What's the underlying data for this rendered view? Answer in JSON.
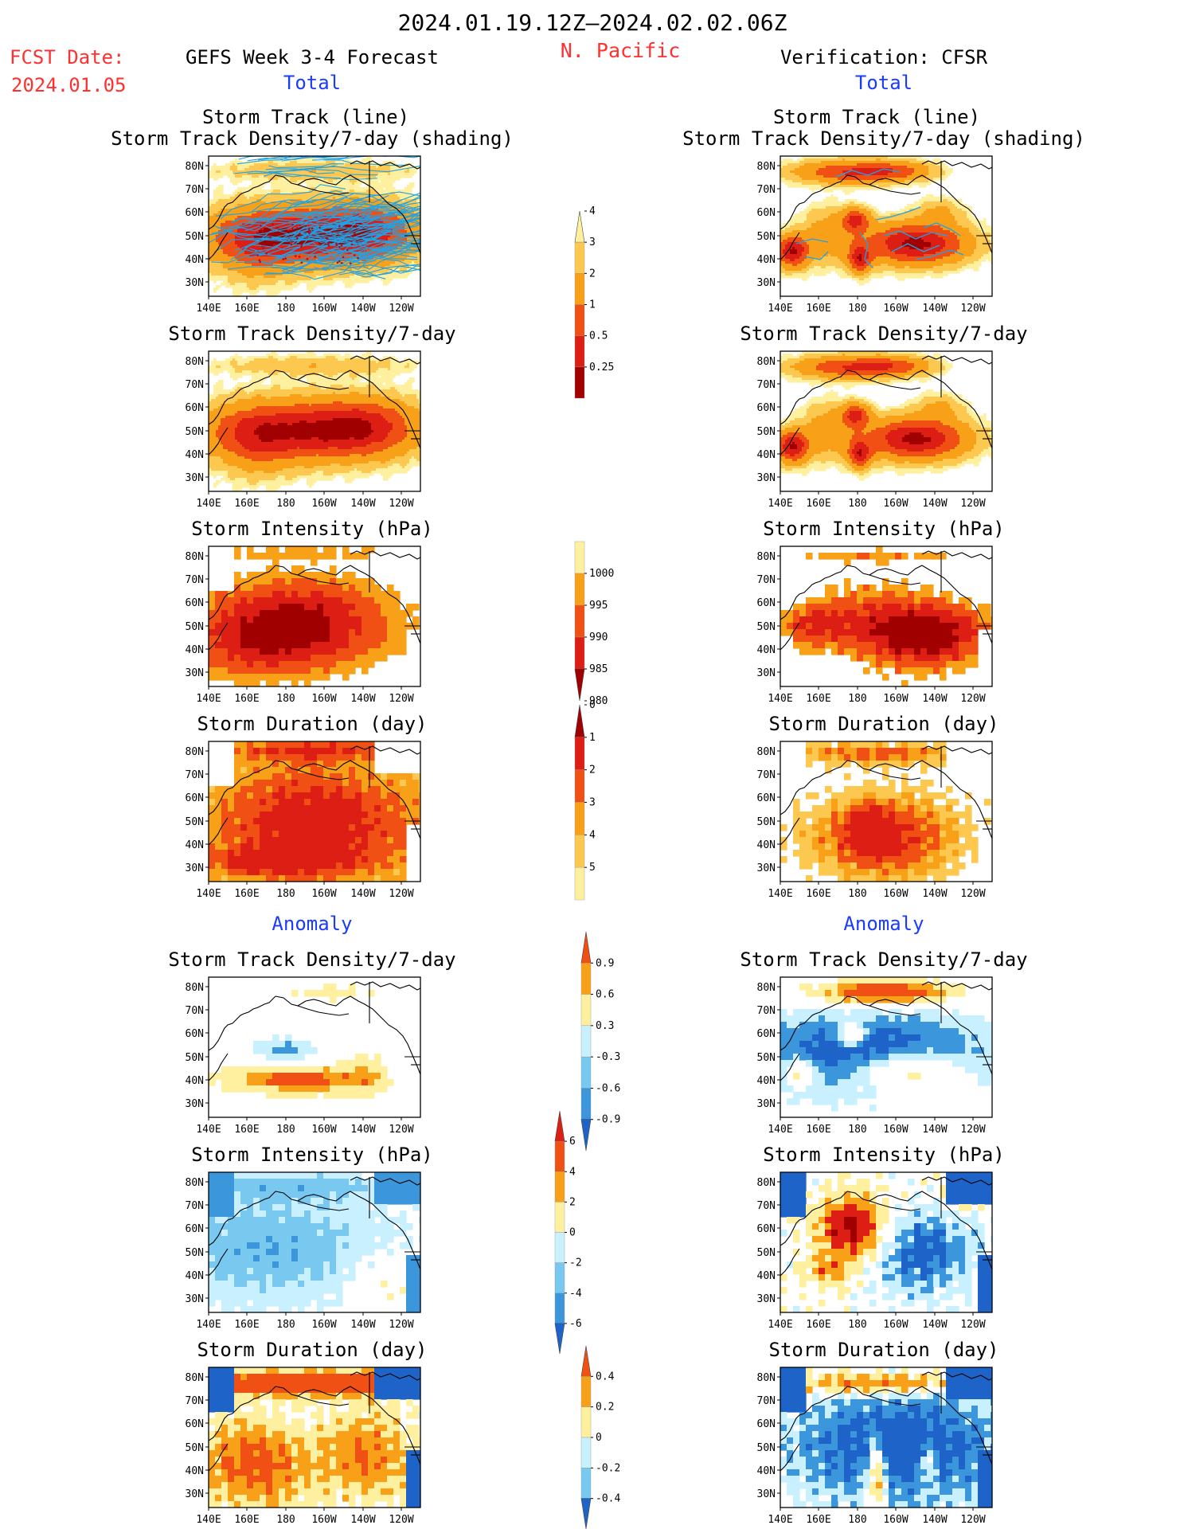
{
  "header": {
    "date_range": "2024.01.19.12Z–2024.02.02.06Z",
    "region": "N. Pacific",
    "fcst_label": "FCST Date:",
    "fcst_date": "2024.01.05",
    "left_title": "GEFS Week 3-4 Forecast",
    "right_title": "Verification: CFSR",
    "total_label": "Total",
    "anomaly_label": "Anomaly"
  },
  "colors": {
    "red_text": "#ff3030",
    "blue_text": "#1a3cff",
    "track_line": "#1fa3e6",
    "dark_red": "#a00000",
    "red": "#dc1e14",
    "orange_red": "#f05014",
    "orange": "#f8a018",
    "light_orange": "#fcc850",
    "pale_yellow": "#fff0a0",
    "pale_blue": "#c8f0ff",
    "light_blue": "#78c8f0",
    "mid_blue": "#3c96dc",
    "blue": "#1e64c8"
  },
  "map_axes": {
    "x_ticks": [
      "140E",
      "160E",
      "180",
      "160W",
      "140W",
      "120W"
    ],
    "y_ticks": [
      "80N",
      "70N",
      "60N",
      "50N",
      "40N",
      "30N"
    ]
  },
  "panels": {
    "track": {
      "title_line1": "Storm Track (line)",
      "title_line2": "Storm Track Density/7-day (shading)"
    },
    "density": {
      "title": "Storm Track Density/7-day"
    },
    "intensity": {
      "title": "Storm Intensity (hPa)"
    },
    "duration": {
      "title": "Storm Duration (day)"
    }
  },
  "chart_data": [
    {
      "type": "heatmap",
      "name": "Total storm track density colorbar",
      "levels": [
        "0.25",
        "0.5",
        "1",
        "2",
        "3",
        "4"
      ],
      "colors": [
        "#fff0a0",
        "#fcc850",
        "#f8a018",
        "#f05014",
        "#dc1e14",
        "#a00000"
      ]
    },
    {
      "type": "heatmap",
      "name": "Total storm intensity colorbar",
      "levels": [
        "1000",
        "995",
        "990",
        "985",
        "980"
      ],
      "colors": [
        "#fff0a0",
        "#f8a018",
        "#f05014",
        "#dc1e14",
        "#a00000"
      ]
    },
    {
      "type": "heatmap",
      "name": "Total storm duration colorbar",
      "levels": [
        "5",
        "4",
        "3",
        "2",
        "1",
        "0"
      ],
      "colors": [
        "#a00000",
        "#dc1e14",
        "#f05014",
        "#f8a018",
        "#fcc850",
        "#fff0a0"
      ]
    },
    {
      "type": "heatmap",
      "name": "Anomaly storm track density colorbar",
      "levels": [
        "0.9",
        "0.6",
        "0.3",
        "-0.3",
        "-0.6",
        "-0.9"
      ],
      "colors": [
        "#f05014",
        "#f8a018",
        "#fff0a0",
        "#c8f0ff",
        "#78c8f0",
        "#3c96dc",
        "#1e64c8"
      ]
    },
    {
      "type": "heatmap",
      "name": "Anomaly storm intensity colorbar",
      "levels": [
        "6",
        "4",
        "2",
        "0",
        "-2",
        "-4",
        "-6"
      ],
      "colors": [
        "#dc1e14",
        "#f05014",
        "#f8a018",
        "#fff0a0",
        "#c8f0ff",
        "#78c8f0",
        "#3c96dc",
        "#1e64c8"
      ]
    },
    {
      "type": "heatmap",
      "name": "Anomaly storm duration colorbar",
      "levels": [
        "0.4",
        "0.2",
        "0",
        "-0.2",
        "-0.4"
      ],
      "colors": [
        "#f05014",
        "#f8a018",
        "#fff0a0",
        "#c8f0ff",
        "#78c8f0",
        "#1e64c8"
      ]
    }
  ]
}
